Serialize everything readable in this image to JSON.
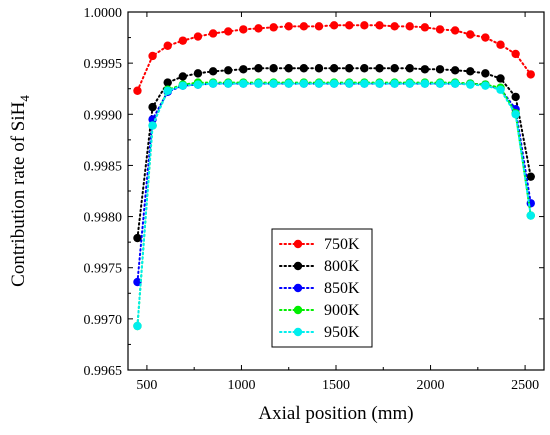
{
  "chart_data": {
    "type": "line",
    "xlabel": "Axial position (mm)",
    "ylabel_main": "Contribution rate of SiH",
    "ylabel_sub": "4",
    "xlim": [
      400,
      2600
    ],
    "ylim": [
      0.9965,
      1.0
    ],
    "x_ticks": [
      500,
      1000,
      1500,
      2000,
      2500
    ],
    "y_ticks": [
      0.9965,
      0.997,
      0.9975,
      0.998,
      0.9985,
      0.999,
      0.9995,
      1.0
    ],
    "x_tick_labels": [
      "500",
      "1000",
      "1500",
      "2000",
      "2500"
    ],
    "y_tick_labels": [
      "0.9965",
      "0.9970",
      "0.9975",
      "0.9980",
      "0.9985",
      "0.9990",
      "0.9995",
      "1.0000"
    ],
    "x": [
      450,
      530,
      610,
      690,
      770,
      850,
      930,
      1010,
      1090,
      1170,
      1250,
      1330,
      1410,
      1490,
      1570,
      1650,
      1730,
      1810,
      1890,
      1970,
      2050,
      2130,
      2210,
      2290,
      2370,
      2450,
      2530
    ],
    "legend_position": "bottom-center",
    "series": [
      {
        "name": "750K",
        "color": "#ff0000",
        "values": [
          0.99923,
          0.99957,
          0.99967,
          0.99972,
          0.99976,
          0.99979,
          0.99981,
          0.99983,
          0.99984,
          0.99985,
          0.99986,
          0.99986,
          0.99986,
          0.99987,
          0.99987,
          0.99987,
          0.99987,
          0.99986,
          0.99986,
          0.99985,
          0.99983,
          0.99982,
          0.99978,
          0.99975,
          0.99968,
          0.99959,
          0.99939
        ]
      },
      {
        "name": "800K",
        "color": "#000000",
        "values": [
          0.99779,
          0.99907,
          0.99931,
          0.99937,
          0.9994,
          0.99942,
          0.99943,
          0.99944,
          0.99945,
          0.99945,
          0.99945,
          0.99945,
          0.99945,
          0.99945,
          0.99945,
          0.99945,
          0.99945,
          0.99945,
          0.99945,
          0.99944,
          0.99944,
          0.99943,
          0.99942,
          0.9994,
          0.99935,
          0.99917,
          0.99839
        ]
      },
      {
        "name": "850K",
        "color": "#0000ff",
        "values": [
          0.99736,
          0.99895,
          0.99922,
          0.99928,
          0.99929,
          0.9993,
          0.9993,
          0.9993,
          0.9993,
          0.9993,
          0.9993,
          0.9993,
          0.9993,
          0.9993,
          0.9993,
          0.9993,
          0.9993,
          0.9993,
          0.9993,
          0.9993,
          0.9993,
          0.9993,
          0.9993,
          0.99929,
          0.99925,
          0.99905,
          0.99813
        ]
      },
      {
        "name": "900K",
        "color": "#00ee00",
        "values": [
          0.99693,
          0.99889,
          0.99924,
          0.99929,
          0.99931,
          0.99931,
          0.99931,
          0.99931,
          0.99931,
          0.99931,
          0.99931,
          0.99931,
          0.99931,
          0.99931,
          0.99931,
          0.99931,
          0.99931,
          0.99931,
          0.99931,
          0.99931,
          0.99931,
          0.99931,
          0.9993,
          0.99929,
          0.99926,
          0.99901,
          0.99801
        ]
      },
      {
        "name": "950K",
        "color": "#00eeee",
        "values": [
          0.99693,
          0.99889,
          0.99923,
          0.99928,
          0.99929,
          0.9993,
          0.9993,
          0.9993,
          0.9993,
          0.9993,
          0.9993,
          0.9993,
          0.9993,
          0.9993,
          0.9993,
          0.9993,
          0.9993,
          0.9993,
          0.9993,
          0.9993,
          0.9993,
          0.9993,
          0.99929,
          0.99928,
          0.99924,
          0.999,
          0.99801
        ]
      }
    ]
  }
}
